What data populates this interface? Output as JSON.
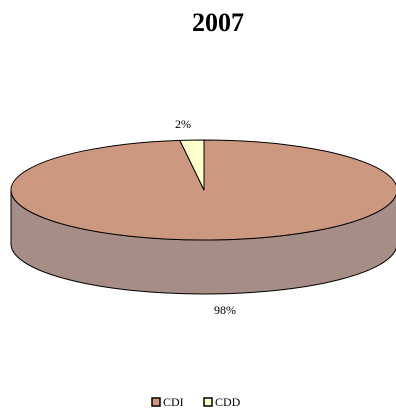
{
  "chart_data": {
    "type": "pie",
    "title": "2007",
    "slices": [
      {
        "label": "CDI",
        "value": 98,
        "data_label": "98%"
      },
      {
        "label": "CDD",
        "value": 2,
        "data_label": "2%"
      }
    ],
    "legend": {
      "placement": "bottom",
      "entries": [
        "CDI",
        "CDD"
      ]
    },
    "style": "3d",
    "colors": {
      "CDI_top": "#cc9980",
      "CDI_side": "#a68d85",
      "CDD_top": "#ffffcc",
      "CDD_side": "#cccca3",
      "outline": "#000000"
    }
  }
}
